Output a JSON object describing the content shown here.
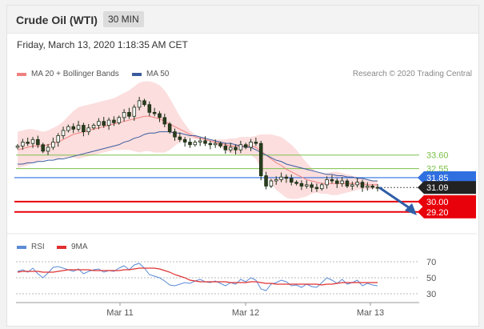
{
  "header": {
    "title": "Crude Oil (WTI)",
    "timeframe": "30 MIN"
  },
  "datetime": "Friday, March 13, 2020 1:18:35 AM CET",
  "legend_main": [
    {
      "label": "MA 20 + Bollinger Bands",
      "color": "#f08080"
    },
    {
      "label": "MA 50",
      "color": "#3a5c9e"
    }
  ],
  "credit": "Research © 2020 Trading Central",
  "legend_rsi": [
    {
      "label": "RSI",
      "color": "#5b8bd6"
    },
    {
      "label": "9MA",
      "color": "#e03030"
    }
  ],
  "chart_data": {
    "type": "candlestick",
    "x_ticks": [
      "Mar 11",
      "Mar 12",
      "Mar 13"
    ],
    "levels": [
      {
        "value": 33.6,
        "label": "33.60",
        "style": "line",
        "color": "#7cc04a"
      },
      {
        "value": 32.55,
        "label": "32.55",
        "style": "line",
        "color": "#7cc04a"
      },
      {
        "value": 31.85,
        "label": "31.85",
        "style": "badge",
        "color": "#2f6fe0"
      },
      {
        "value": 31.09,
        "label": "31.09",
        "style": "badge-current",
        "color": "#222222"
      },
      {
        "value": 30.0,
        "label": "30.00",
        "style": "badge",
        "color": "#e8000a"
      },
      {
        "value": 29.2,
        "label": "29.20",
        "style": "badge",
        "color": "#e8000a"
      }
    ],
    "close": [
      34.3,
      34.6,
      34.5,
      34.8,
      34.4,
      33.9,
      34.2,
      34.6,
      35.1,
      35.5,
      35.8,
      35.6,
      35.9,
      35.4,
      35.7,
      35.9,
      36.2,
      35.9,
      36.3,
      36.1,
      36.5,
      36.9,
      36.6,
      37.3,
      37.8,
      37.5,
      36.9,
      36.8,
      36.5,
      36.0,
      35.4,
      35.0,
      34.8,
      34.6,
      34.4,
      34.6,
      34.7,
      34.5,
      34.4,
      34.5,
      34.3,
      34.0,
      34.2,
      34.0,
      34.4,
      34.2,
      34.6,
      34.5,
      32.0,
      31.2,
      31.6,
      31.7,
      31.9,
      31.8,
      31.5,
      31.4,
      31.2,
      31.3,
      31.1,
      31.0,
      31.3,
      31.7,
      31.6,
      31.4,
      31.6,
      31.2,
      31.3,
      31.5,
      31.1,
      31.2,
      31.1,
      31.09
    ],
    "ma20": [
      34.0,
      34.1,
      34.2,
      34.3,
      34.3,
      34.3,
      34.4,
      34.5,
      34.6,
      34.8,
      35.0,
      35.2,
      35.3,
      35.4,
      35.5,
      35.6,
      35.7,
      35.8,
      35.9,
      36.0,
      36.1,
      36.2,
      36.3,
      36.4,
      36.5,
      36.6,
      36.6,
      36.5,
      36.4,
      36.2,
      36.0,
      35.8,
      35.6,
      35.4,
      35.2,
      35.0,
      34.9,
      34.8,
      34.7,
      34.6,
      34.5,
      34.4,
      34.3,
      34.3,
      34.3,
      34.3,
      34.3,
      34.2,
      33.9,
      33.6,
      33.3,
      33.0,
      32.8,
      32.5,
      32.3,
      32.1,
      31.9,
      31.7,
      31.6,
      31.5,
      31.4,
      31.4,
      31.4,
      31.4,
      31.4,
      31.4,
      31.4,
      31.4,
      31.4,
      31.3,
      31.3,
      31.3
    ],
    "bb_upper": [
      35.4,
      35.5,
      35.6,
      35.6,
      35.5,
      35.4,
      35.5,
      35.7,
      35.9,
      36.2,
      36.6,
      37.0,
      37.3,
      37.4,
      37.5,
      37.6,
      37.7,
      37.8,
      37.9,
      38.0,
      38.2,
      38.4,
      38.6,
      38.9,
      39.2,
      39.3,
      39.3,
      39.2,
      39.0,
      38.6,
      38.0,
      37.3,
      36.6,
      36.0,
      35.5,
      35.2,
      35.0,
      34.9,
      34.8,
      34.8,
      34.8,
      34.8,
      34.9,
      34.9,
      35.0,
      35.0,
      35.0,
      35.1,
      35.2,
      35.2,
      35.2,
      35.1,
      35.0,
      34.7,
      34.4,
      34.0,
      33.5,
      33.0,
      32.6,
      32.3,
      32.2,
      32.2,
      32.3,
      32.3,
      32.2,
      32.1,
      32.0,
      31.9,
      31.8,
      31.7,
      31.6,
      31.6
    ],
    "bb_lower": [
      32.6,
      32.7,
      32.8,
      33.0,
      33.1,
      33.2,
      33.3,
      33.3,
      33.3,
      33.4,
      33.4,
      33.4,
      33.3,
      33.4,
      33.5,
      33.6,
      33.7,
      33.8,
      33.9,
      34.0,
      34.0,
      34.0,
      34.0,
      33.9,
      33.8,
      33.9,
      33.9,
      33.8,
      33.8,
      33.8,
      34.0,
      34.3,
      34.6,
      34.8,
      34.9,
      34.8,
      34.8,
      34.7,
      34.6,
      34.4,
      34.2,
      34.0,
      33.7,
      33.7,
      33.6,
      33.6,
      33.6,
      33.3,
      32.6,
      32.0,
      31.4,
      30.9,
      30.6,
      30.3,
      30.2,
      30.2,
      30.3,
      30.4,
      30.6,
      30.7,
      30.6,
      30.6,
      30.5,
      30.5,
      30.6,
      30.7,
      30.8,
      30.9,
      31.0,
      30.9,
      31.0,
      31.0
    ],
    "ma50": [
      32.9,
      32.9,
      33.0,
      33.0,
      33.1,
      33.1,
      33.2,
      33.2,
      33.3,
      33.3,
      33.4,
      33.5,
      33.6,
      33.7,
      33.8,
      33.9,
      34.0,
      34.1,
      34.2,
      34.3,
      34.4,
      34.6,
      34.7,
      34.9,
      35.0,
      35.2,
      35.3,
      35.3,
      35.4,
      35.4,
      35.4,
      35.3,
      35.3,
      35.2,
      35.1,
      35.1,
      35.0,
      34.9,
      34.8,
      34.7,
      34.6,
      34.5,
      34.5,
      34.4,
      34.3,
      34.2,
      34.2,
      34.0,
      33.8,
      33.6,
      33.4,
      33.2,
      33.1,
      32.9,
      32.8,
      32.7,
      32.6,
      32.5,
      32.4,
      32.3,
      32.2,
      32.1,
      32.1,
      32.0,
      32.0,
      31.9,
      31.9,
      31.8,
      31.8,
      31.7,
      31.6,
      31.6
    ],
    "forecast": {
      "from": 31.09,
      "to": 29.5
    },
    "rsi": {
      "ticks": [
        70,
        50,
        30
      ],
      "rsi": [
        58,
        60,
        57,
        62,
        55,
        50,
        56,
        63,
        64,
        62,
        60,
        58,
        61,
        55,
        58,
        60,
        61,
        57,
        59,
        58,
        62,
        65,
        60,
        66,
        68,
        62,
        54,
        52,
        50,
        46,
        41,
        40,
        42,
        44,
        43,
        46,
        48,
        45,
        44,
        46,
        43,
        40,
        44,
        42,
        48,
        45,
        50,
        47,
        36,
        34,
        42,
        44,
        47,
        45,
        40,
        41,
        38,
        42,
        39,
        38,
        44,
        50,
        47,
        43,
        48,
        42,
        44,
        47,
        40,
        43,
        41,
        40
      ],
      "ma9": [
        57,
        58,
        58,
        58,
        58,
        57,
        57,
        57,
        58,
        59,
        60,
        60,
        60,
        60,
        60,
        59,
        59,
        59,
        59,
        59,
        59,
        60,
        60,
        61,
        62,
        62,
        62,
        62,
        61,
        59,
        57,
        54,
        52,
        50,
        47,
        46,
        45,
        45,
        45,
        45,
        45,
        45,
        44,
        44,
        44,
        44,
        45,
        45,
        44,
        43,
        43,
        42,
        42,
        42,
        42,
        42,
        42,
        42,
        42,
        42,
        41,
        42,
        42,
        43,
        44,
        44,
        44,
        44,
        44,
        44,
        44,
        44
      ]
    }
  }
}
